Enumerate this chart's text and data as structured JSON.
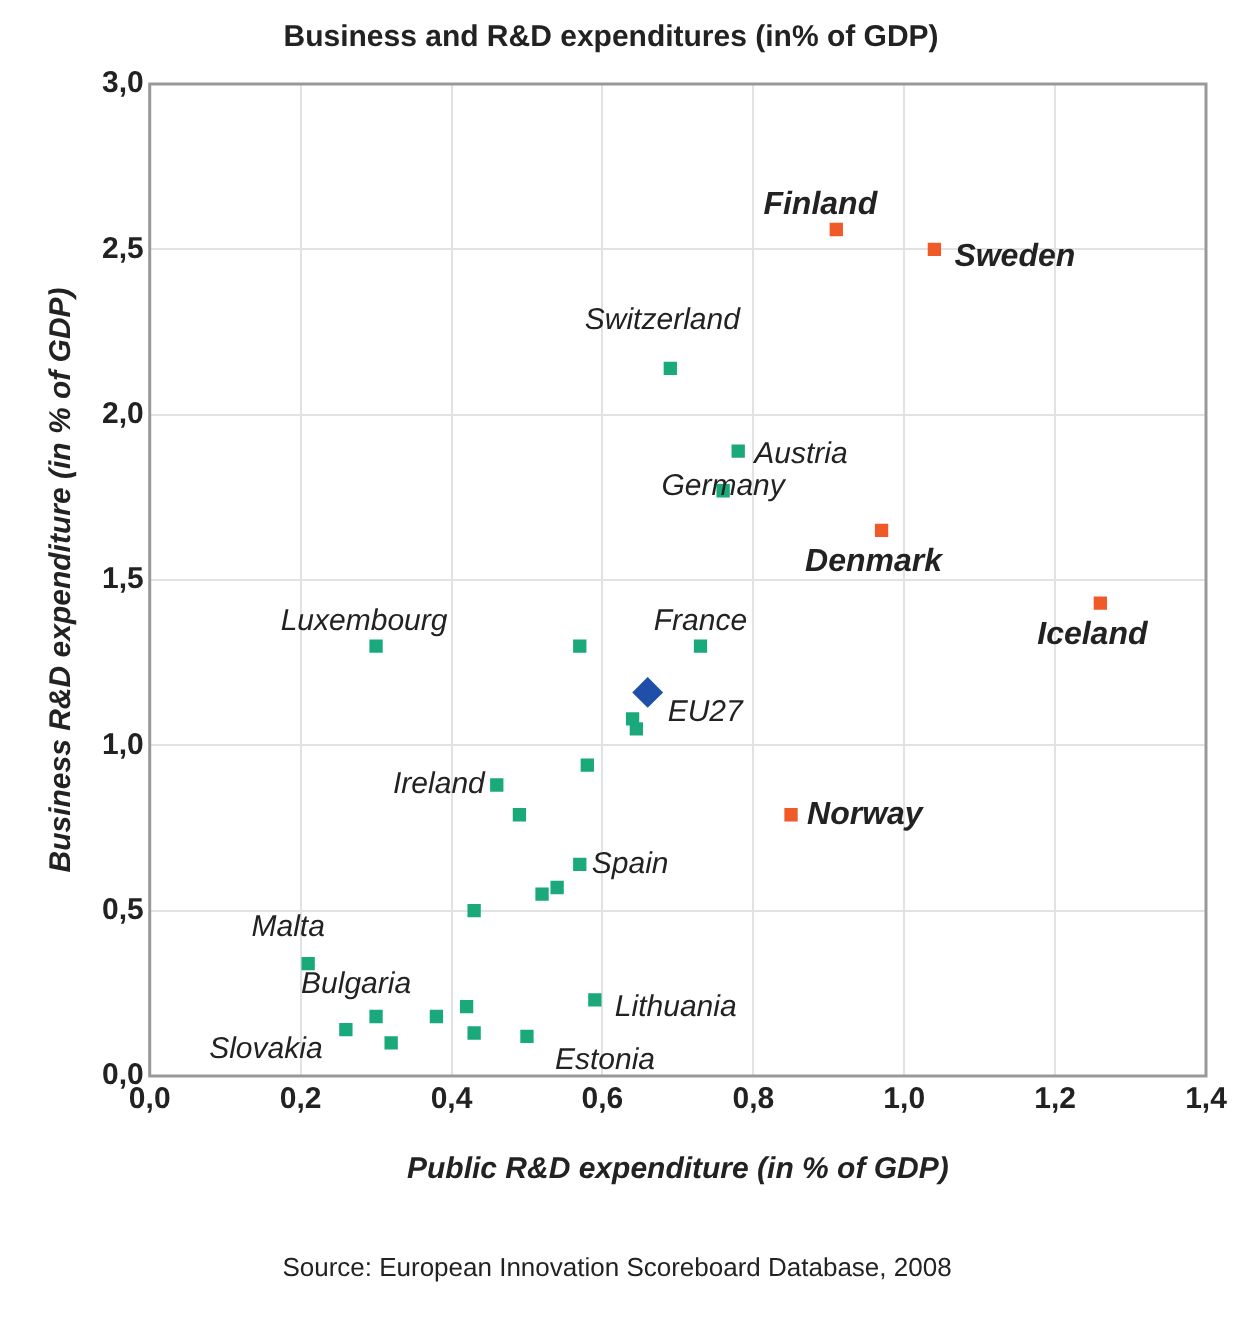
{
  "chart_data": {
    "type": "scatter",
    "title": "Business and R&D expenditures (in% of GDP)",
    "xlabel": "Public R&D expenditure (in % of GDP)",
    "ylabel": "Business R&D expenditure (in % of GDP)",
    "xlim": [
      0,
      1.4
    ],
    "ylim": [
      0,
      3
    ],
    "xticks": [
      {
        "value": 0,
        "label": "0,0"
      },
      {
        "value": 0.2,
        "label": "0,2"
      },
      {
        "value": 0.4,
        "label": "0,4"
      },
      {
        "value": 0.6,
        "label": "0,6"
      },
      {
        "value": 0.8,
        "label": "0,8"
      },
      {
        "value": 1,
        "label": "1,0"
      },
      {
        "value": 1.2,
        "label": "1,2"
      },
      {
        "value": 1.4,
        "label": "1,4"
      }
    ],
    "yticks": [
      {
        "value": 0,
        "label": "0,0"
      },
      {
        "value": 0.5,
        "label": "0,5"
      },
      {
        "value": 1,
        "label": "1,0"
      },
      {
        "value": 1.5,
        "label": "1,5"
      },
      {
        "value": 2,
        "label": "2,0"
      },
      {
        "value": 2.5,
        "label": "2,5"
      },
      {
        "value": 3,
        "label": "3,0"
      }
    ],
    "grid": true,
    "legend": false,
    "series": [
      {
        "color": "#1aa97a",
        "marker": "square",
        "x": [
          0.3,
          0.57,
          0.73,
          0.64,
          0.645,
          0.58,
          0.46,
          0.49,
          0.57,
          0.52,
          0.54,
          0.43,
          0.21,
          0.59,
          0.42,
          0.38,
          0.3,
          0.26,
          0.32,
          0.43,
          0.5,
          0.69,
          0.78,
          0.76
        ],
        "values": [
          1.3,
          1.3,
          1.3,
          1.08,
          1.05,
          0.94,
          0.88,
          0.79,
          0.64,
          0.55,
          0.57,
          0.5,
          0.34,
          0.23,
          0.21,
          0.18,
          0.18,
          0.14,
          0.1,
          0.13,
          0.12,
          2.14,
          1.89,
          1.77
        ]
      },
      {
        "color": "#f05a28",
        "marker": "square",
        "x": [
          0.91,
          1.04,
          0.97,
          1.26,
          0.85
        ],
        "values": [
          2.56,
          2.5,
          1.65,
          1.43,
          0.79
        ]
      },
      {
        "color": "#1f4fa8",
        "marker": "diamond",
        "x": [
          0.66
        ],
        "values": [
          1.16
        ]
      }
    ],
    "annotations": [
      {
        "text": "Finland",
        "x": 0.91,
        "y": 2.56
      },
      {
        "text": "Sweden",
        "x": 1.04,
        "y": 2.5
      },
      {
        "text": "Denmark",
        "x": 0.97,
        "y": 1.65
      },
      {
        "text": "Iceland",
        "x": 1.26,
        "y": 1.43
      },
      {
        "text": "Norway",
        "x": 0.85,
        "y": 0.79
      },
      {
        "text": "Switzerland",
        "x": 0.69,
        "y": 2.14
      },
      {
        "text": "Austria",
        "x": 0.78,
        "y": 1.89
      },
      {
        "text": "Germany",
        "x": 0.76,
        "y": 1.77
      },
      {
        "text": "Luxembourg",
        "x": 0.3,
        "y": 1.3
      },
      {
        "text": "France",
        "x": 0.73,
        "y": 1.3
      },
      {
        "text": "EU27",
        "x": 0.66,
        "y": 1.16
      },
      {
        "text": "Ireland",
        "x": 0.46,
        "y": 0.88
      },
      {
        "text": "Spain",
        "x": 0.57,
        "y": 0.64
      },
      {
        "text": "Malta",
        "x": 0.21,
        "y": 0.34
      },
      {
        "text": "Lithuania",
        "x": 0.59,
        "y": 0.23
      },
      {
        "text": "Bulgaria",
        "x": 0.3,
        "y": 0.18
      },
      {
        "text": "Slovakia",
        "x": 0.26,
        "y": 0.14
      },
      {
        "text": "Estonia",
        "x": 0.5,
        "y": 0.12
      },
      "Source: European Innovation Scoreboard Database, 2008"
    ]
  }
}
